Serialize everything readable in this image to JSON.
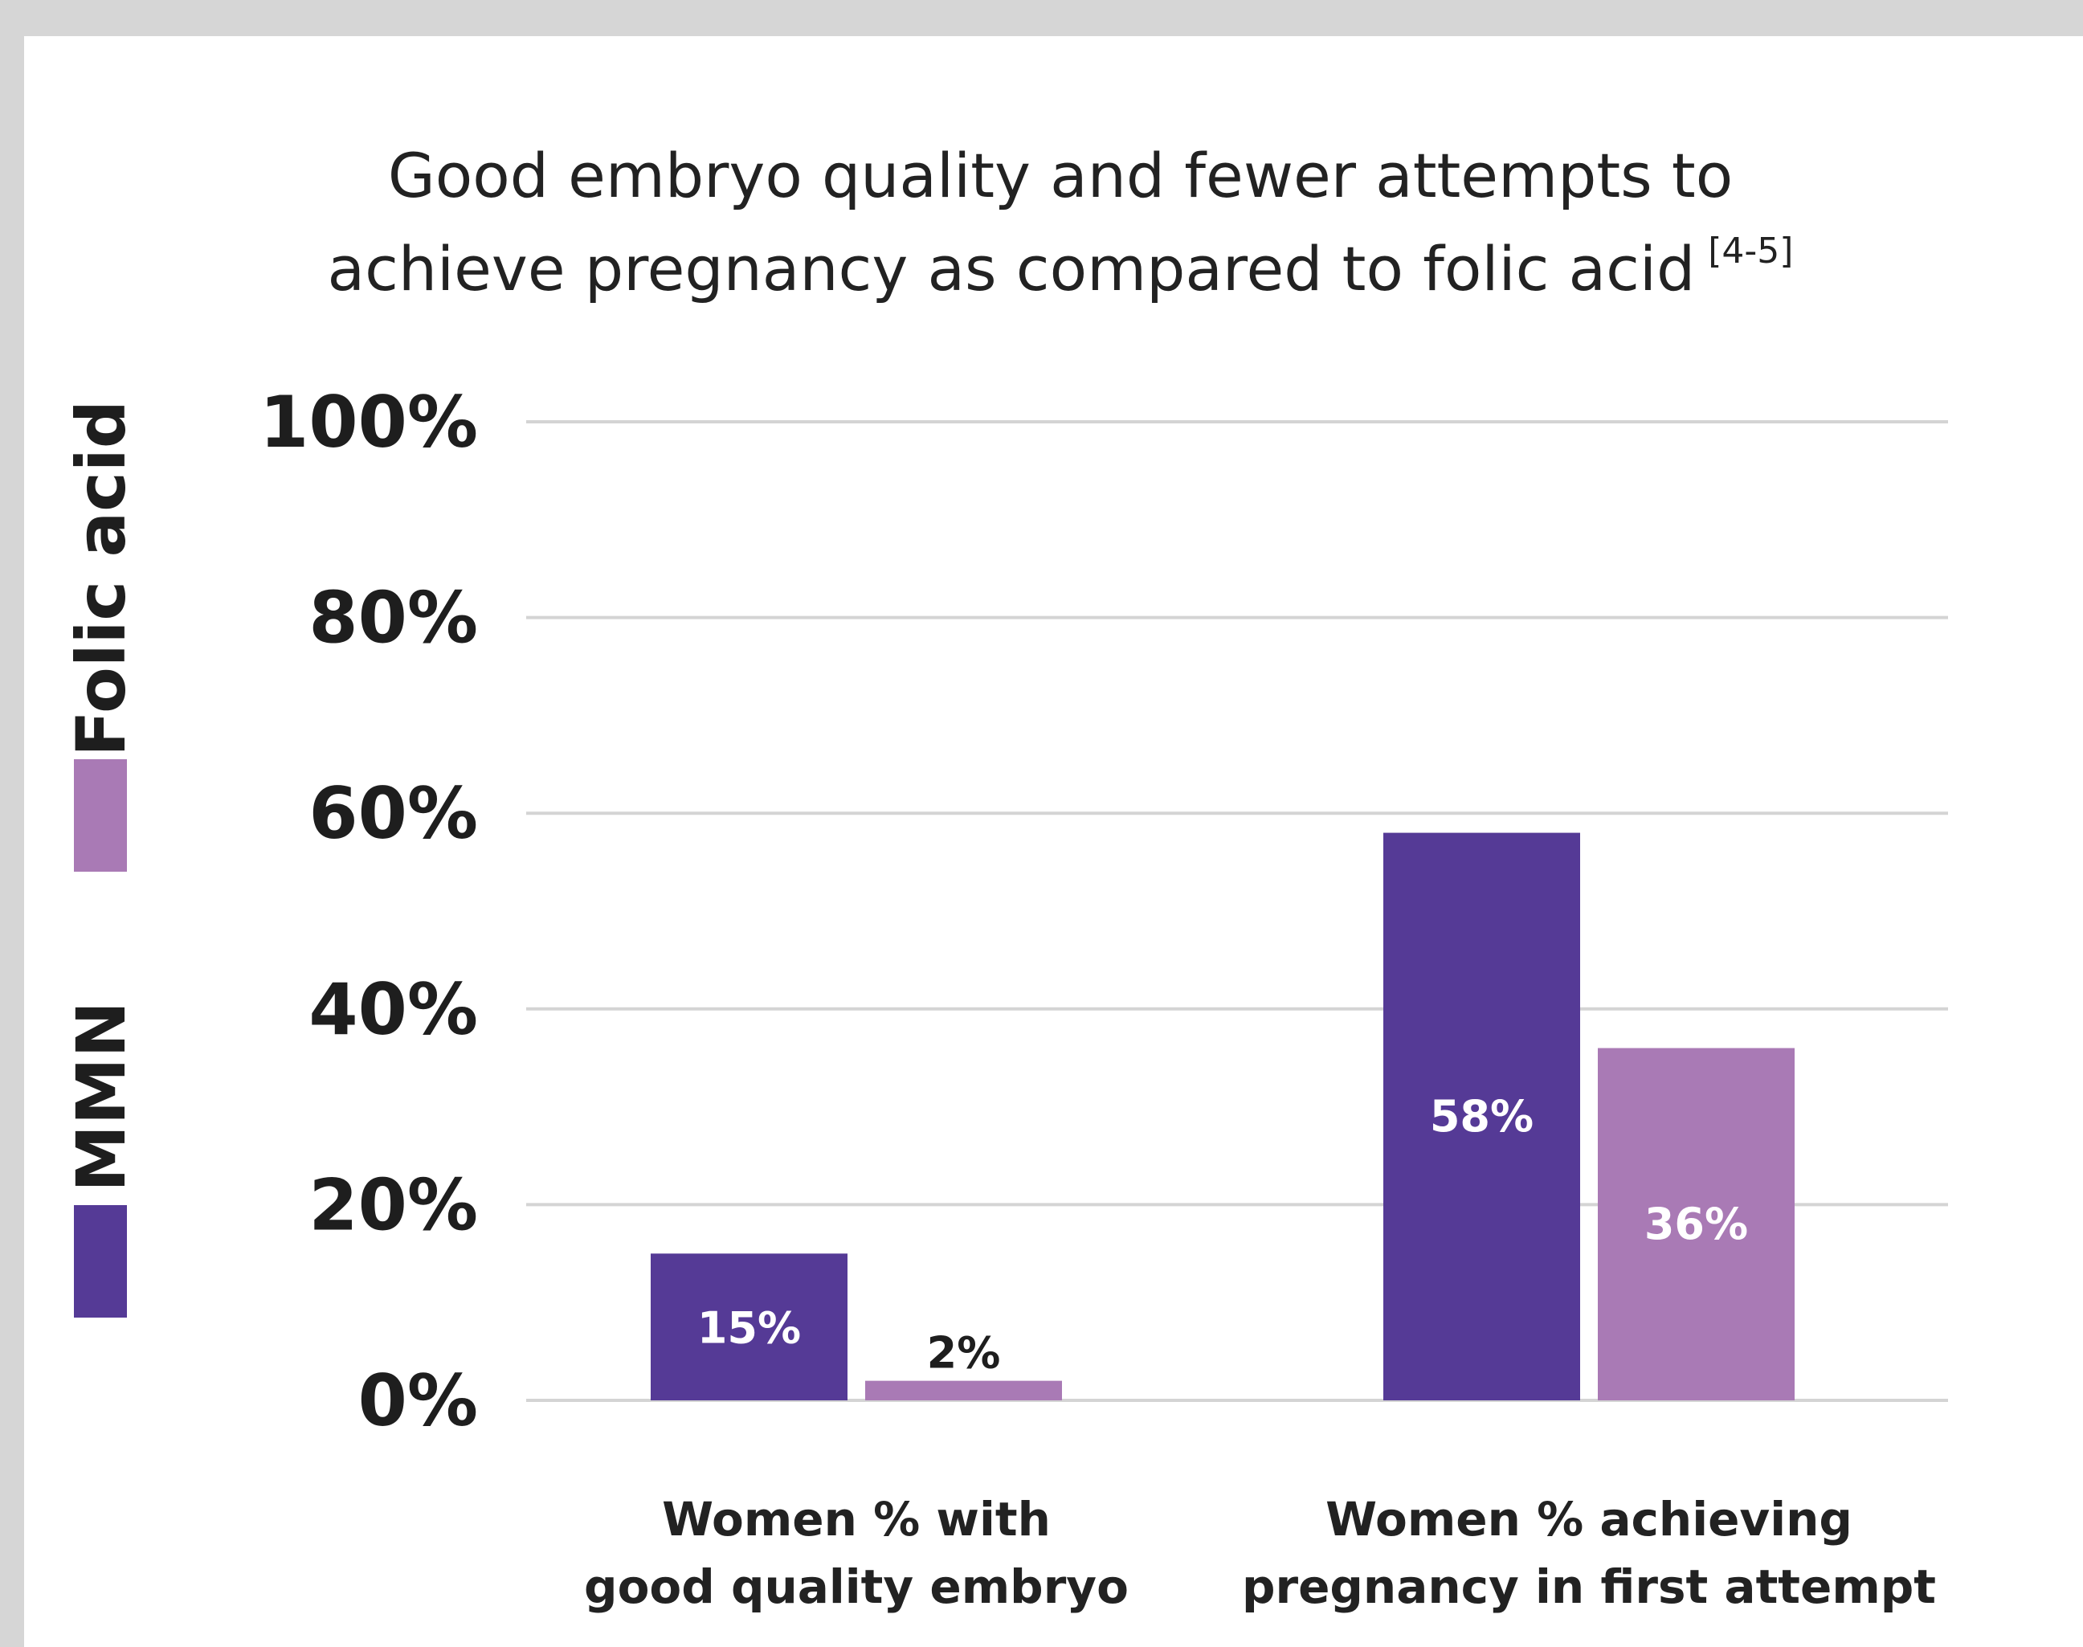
{
  "chart_data": {
    "type": "bar",
    "title_line1": "Good embryo quality and fewer attempts to",
    "title_line2": "achieve pregnancy as compared to folic acid",
    "title_superscript": "[4-5]",
    "categories": [
      [
        "Women % with",
        "good quality embryo"
      ],
      [
        "Women % achieving",
        "pregnancy in first attempt"
      ]
    ],
    "series": [
      {
        "name": "MMN",
        "color": "#553a96",
        "values": [
          15,
          58
        ],
        "labels": [
          "15%",
          "58%"
        ]
      },
      {
        "name": "Folic acid",
        "color": "#a97ab5",
        "values": [
          2,
          36
        ],
        "labels": [
          "2%",
          "36%"
        ]
      }
    ],
    "y_ticks": [
      {
        "value": 0,
        "label": "0%"
      },
      {
        "value": 20,
        "label": "20%"
      },
      {
        "value": 40,
        "label": "40%"
      },
      {
        "value": 60,
        "label": "60%"
      },
      {
        "value": 80,
        "label": "80%"
      },
      {
        "value": 100,
        "label": "100%"
      }
    ],
    "ylim": [
      0,
      100
    ],
    "grid": true,
    "grid_color": "#d4d4d4",
    "legend_placement": "left-vertical",
    "xlabel": "",
    "ylabel": ""
  }
}
